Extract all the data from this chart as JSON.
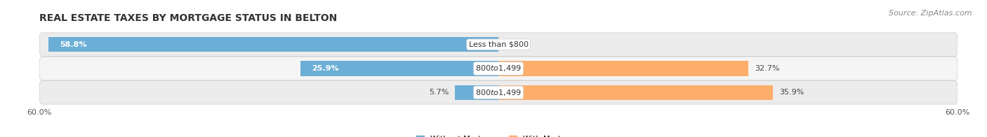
{
  "title": "Real Estate Taxes by Mortgage Status in Belton",
  "source": "Source: ZipAtlas.com",
  "rows": [
    {
      "label": "Less than $800",
      "without_mortgage": 58.8,
      "with_mortgage": 0.0
    },
    {
      "label": "$800 to $1,499",
      "without_mortgage": 25.9,
      "with_mortgage": 32.7
    },
    {
      "label": "$800 to $1,499",
      "without_mortgage": 5.7,
      "with_mortgage": 35.9
    }
  ],
  "axis_limit": 60.0,
  "color_without": "#6BAED6",
  "color_with": "#FDAE6B",
  "bar_height": 0.62,
  "row_bg_color": "#EFEFEF",
  "row_gap_color": "#FAFAFA",
  "title_fontsize": 10,
  "label_fontsize": 8,
  "tick_fontsize": 8,
  "source_fontsize": 8,
  "legend_fontsize": 8
}
